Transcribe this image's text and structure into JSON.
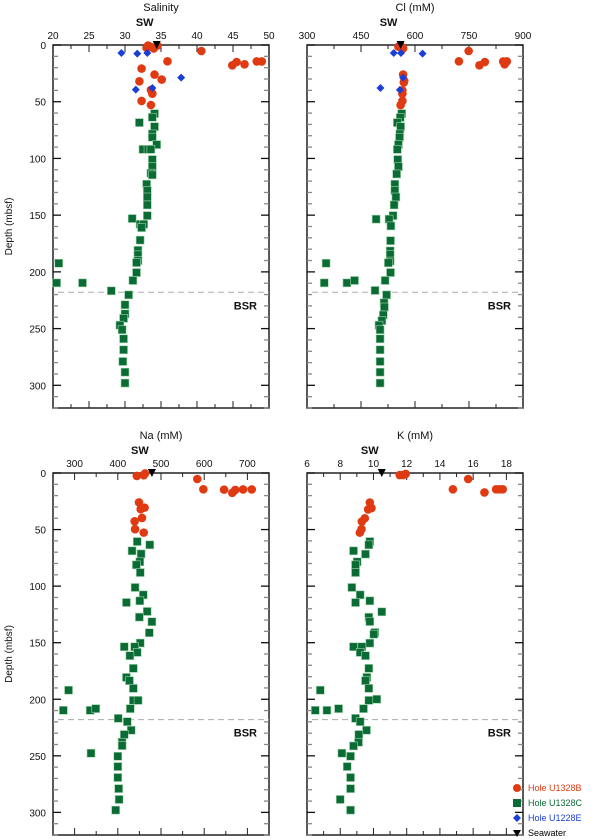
{
  "colors": {
    "U1328B": "#e03a12",
    "U1328C": "#0b6b35",
    "U1228E": "#1a3fd6",
    "Seawater": "#000000"
  },
  "legend": [
    {
      "key": "U1328B",
      "label": "Hole U1328B",
      "marker": "circle"
    },
    {
      "key": "U1328C",
      "label": "Hole U1328C",
      "marker": "square"
    },
    {
      "key": "U1228E",
      "label": "Hole U1228E",
      "marker": "diamond"
    },
    {
      "key": "Seawater",
      "label": "Seawater",
      "marker": "triangle-down"
    }
  ],
  "chart_data": [
    {
      "type": "scatter",
      "title": "Salinity",
      "ylabel": "Depth (mbsf)",
      "sw_label": "SW",
      "bsr_label": "BSR",
      "bsr_depth": 218,
      "xlim": [
        20,
        50
      ],
      "xticks": [
        20,
        25,
        30,
        35,
        40,
        45,
        50
      ],
      "ylim": [
        320,
        0
      ],
      "yticks": [
        0,
        50,
        100,
        150,
        200,
        250,
        300
      ],
      "series": {
        "U1328B": [
          [
            33.5,
            1.5
          ],
          [
            33,
            2.5
          ],
          [
            34,
            3
          ],
          [
            34.5,
            0.5
          ],
          [
            33.2,
            0.5
          ],
          [
            40.6,
            5.3
          ],
          [
            35.9,
            14.4
          ],
          [
            44.9,
            17.9
          ],
          [
            45.5,
            15
          ],
          [
            46.6,
            17
          ],
          [
            48.3,
            14.5
          ],
          [
            49,
            14.5
          ],
          [
            32.3,
            20.8
          ],
          [
            34.1,
            26.1
          ],
          [
            35.1,
            30.5
          ],
          [
            32,
            32
          ],
          [
            33.6,
            39.6
          ],
          [
            33.8,
            42.9
          ],
          [
            32.3,
            49.3
          ],
          [
            33.6,
            52.9
          ]
        ],
        "U1228E": [
          [
            29.5,
            7
          ],
          [
            31.7,
            7.6
          ],
          [
            33.1,
            7
          ],
          [
            37.8,
            28.8
          ],
          [
            31.5,
            39.3
          ],
          [
            33.8,
            37.9
          ]
        ],
        "U1328C": [
          [
            34.1,
            60.5
          ],
          [
            33.8,
            63.7
          ],
          [
            32,
            68.4
          ],
          [
            34.1,
            72
          ],
          [
            33.8,
            78.4
          ],
          [
            33.8,
            81.3
          ],
          [
            34.4,
            87.8
          ],
          [
            32.5,
            92
          ],
          [
            33.2,
            92
          ],
          [
            33.6,
            92
          ],
          [
            33.8,
            101
          ],
          [
            33.8,
            107.3
          ],
          [
            33.6,
            113
          ],
          [
            33.8,
            114.5
          ],
          [
            33,
            122.7
          ],
          [
            33.1,
            128.4
          ],
          [
            33.1,
            134
          ],
          [
            33.1,
            141
          ],
          [
            33.1,
            150.4
          ],
          [
            31,
            153
          ],
          [
            32.1,
            158
          ],
          [
            32.6,
            158
          ],
          [
            32.3,
            161
          ],
          [
            32.1,
            172
          ],
          [
            31.8,
            181
          ],
          [
            31.8,
            185
          ],
          [
            31.8,
            190
          ],
          [
            31.6,
            191.8
          ],
          [
            20.8,
            192.4
          ],
          [
            31.6,
            200.6
          ],
          [
            31.1,
            207.6
          ],
          [
            20.5,
            209.7
          ],
          [
            24.1,
            209.7
          ],
          [
            28.1,
            216.7
          ],
          [
            30.5,
            220.3
          ],
          [
            30,
            229
          ],
          [
            30,
            237
          ],
          [
            29.8,
            241
          ],
          [
            29.3,
            247
          ],
          [
            29.6,
            251
          ],
          [
            29.8,
            259
          ],
          [
            29.8,
            268.7
          ],
          [
            29.7,
            279
          ],
          [
            30,
            288.4
          ],
          [
            30,
            298
          ]
        ],
        "Seawater": [
          [
            34.4,
            0
          ]
        ]
      }
    },
    {
      "type": "scatter",
      "title": "Cl (mM)",
      "ylabel": "",
      "sw_label": "SW",
      "bsr_label": "BSR",
      "bsr_depth": 218,
      "xlim": [
        300,
        900
      ],
      "xticks": [
        300,
        450,
        600,
        750,
        900
      ],
      "ylim": [
        320,
        0
      ],
      "yticks": [],
      "series": {
        "U1328B": [
          [
            554,
            1.5
          ],
          [
            567,
            3
          ],
          [
            560,
            0.5
          ],
          [
            749,
            5.3
          ],
          [
            722,
            14.4
          ],
          [
            794,
            15
          ],
          [
            779,
            17.9
          ],
          [
            845,
            14.5
          ],
          [
            855,
            14.5
          ],
          [
            849,
            17
          ],
          [
            567,
            26
          ],
          [
            570,
            31.5
          ],
          [
            569,
            33
          ],
          [
            565,
            40
          ],
          [
            565,
            43
          ],
          [
            565,
            49.3
          ],
          [
            560,
            53
          ]
        ],
        "U1228E": [
          [
            541,
            7
          ],
          [
            561,
            7
          ],
          [
            621,
            7.6
          ],
          [
            567,
            28.8
          ],
          [
            504,
            37.9
          ],
          [
            558,
            39.6
          ]
        ],
        "U1328C": [
          [
            563,
            60.5
          ],
          [
            559,
            63.9
          ],
          [
            551,
            68.4
          ],
          [
            560,
            72
          ],
          [
            558,
            78.4
          ],
          [
            557,
            81.3
          ],
          [
            554,
            87.8
          ],
          [
            551,
            92
          ],
          [
            552,
            101
          ],
          [
            554,
            107.3
          ],
          [
            549,
            113.7
          ],
          [
            544,
            122.7
          ],
          [
            544,
            128.4
          ],
          [
            547,
            134
          ],
          [
            542,
            141
          ],
          [
            539,
            150.4
          ],
          [
            492,
            153.5
          ],
          [
            528,
            153.5
          ],
          [
            533,
            159.5
          ],
          [
            532,
            172.5
          ],
          [
            531,
            181.5
          ],
          [
            531,
            184.5
          ],
          [
            531,
            190.5
          ],
          [
            526,
            192
          ],
          [
            353,
            192.4
          ],
          [
            532,
            200.6
          ],
          [
            517,
            207.6
          ],
          [
            348,
            209.7
          ],
          [
            411,
            209.7
          ],
          [
            432,
            207.6
          ],
          [
            489,
            216.4
          ],
          [
            521,
            220.3
          ],
          [
            514,
            227.3
          ],
          [
            515,
            231
          ],
          [
            512,
            238
          ],
          [
            508,
            243
          ],
          [
            500,
            247
          ],
          [
            503,
            251
          ],
          [
            503,
            259
          ],
          [
            503,
            268.7
          ],
          [
            503,
            279
          ],
          [
            503,
            288.4
          ],
          [
            503,
            298
          ]
        ],
        "Seawater": [
          [
            560,
            0
          ]
        ]
      }
    },
    {
      "type": "scatter",
      "title": "Na (mM)",
      "ylabel": "Depth (mbsf)",
      "sw_label": "SW",
      "bsr_label": "BSR",
      "bsr_depth": 218,
      "xlim": [
        250,
        750
      ],
      "xticks": [
        300,
        400,
        500,
        600,
        700
      ],
      "ylim": [
        320,
        0
      ],
      "yticks": [
        0,
        50,
        100,
        150,
        200,
        250,
        300
      ],
      "series": {
        "U1328B": [
          [
            444,
            2.6
          ],
          [
            460,
            2
          ],
          [
            463,
            0.4
          ],
          [
            584,
            5.3
          ],
          [
            598,
            14.4
          ],
          [
            646,
            14.7
          ],
          [
            665,
            17.5
          ],
          [
            672,
            15
          ],
          [
            690,
            14.5
          ],
          [
            710,
            14.5
          ],
          [
            449,
            26
          ],
          [
            453,
            32
          ],
          [
            462,
            30.6
          ],
          [
            456,
            39.7
          ],
          [
            439,
            42.7
          ],
          [
            440,
            49.7
          ],
          [
            460,
            52.7
          ]
        ],
        "U1328C": [
          [
            445,
            60.6
          ],
          [
            474,
            63.5
          ],
          [
            433,
            68.8
          ],
          [
            454,
            71.5
          ],
          [
            451,
            78.5
          ],
          [
            443,
            81.2
          ],
          [
            452,
            88
          ],
          [
            440,
            101.2
          ],
          [
            459,
            107.7
          ],
          [
            420,
            114.5
          ],
          [
            451,
            113
          ],
          [
            468,
            122.4
          ],
          [
            450,
            127.4
          ],
          [
            479,
            131.5
          ],
          [
            473,
            141.2
          ],
          [
            452,
            150.3
          ],
          [
            415,
            153.6
          ],
          [
            439,
            153.6
          ],
          [
            445,
            158.6
          ],
          [
            428,
            161.5
          ],
          [
            436,
            172.7
          ],
          [
            420,
            180.7
          ],
          [
            427,
            183.6
          ],
          [
            436,
            190.4
          ],
          [
            286,
            192
          ],
          [
            436,
            201
          ],
          [
            447,
            201
          ],
          [
            274,
            209.8
          ],
          [
            336,
            209.8
          ],
          [
            349,
            208.3
          ],
          [
            429,
            208.3
          ],
          [
            401,
            216.9
          ],
          [
            422,
            219.8
          ],
          [
            431,
            227.4
          ],
          [
            415,
            231.2
          ],
          [
            410,
            238
          ],
          [
            410,
            241
          ],
          [
            338,
            247.7
          ],
          [
            400,
            250.4
          ],
          [
            400,
            259.5
          ],
          [
            400,
            269.2
          ],
          [
            402,
            279
          ],
          [
            403,
            288.6
          ],
          [
            395,
            298
          ]
        ],
        "Seawater": [
          [
            479,
            0
          ]
        ]
      }
    },
    {
      "type": "scatter",
      "title": "K (mM)",
      "ylabel": "",
      "sw_label": "SW",
      "bsr_label": "BSR",
      "bsr_depth": 218,
      "xlim": [
        6,
        19
      ],
      "xticks": [
        6,
        8,
        10,
        12,
        14,
        16,
        18
      ],
      "ylim": [
        320,
        0
      ],
      "yticks": [],
      "series": {
        "U1328B": [
          [
            11.58,
            1.8
          ],
          [
            11.94,
            0.8
          ],
          [
            11.78,
            1.8
          ],
          [
            15.7,
            5.3
          ],
          [
            14.78,
            14.4
          ],
          [
            16.68,
            17.2
          ],
          [
            17.38,
            14.4
          ],
          [
            17.58,
            14.4
          ],
          [
            17.78,
            14.4
          ],
          [
            9.78,
            26.1
          ],
          [
            9.88,
            31
          ],
          [
            9.68,
            32.2
          ],
          [
            9.48,
            40
          ],
          [
            9.3,
            42.9
          ],
          [
            9.28,
            49.7
          ],
          [
            9.18,
            52.7
          ]
        ],
        "U1328C": [
          [
            9.78,
            60.6
          ],
          [
            9.72,
            63.5
          ],
          [
            8.8,
            68.8
          ],
          [
            9.52,
            71.7
          ],
          [
            9.02,
            78.5
          ],
          [
            8.92,
            81.2
          ],
          [
            8.92,
            88
          ],
          [
            8.7,
            101.2
          ],
          [
            9.2,
            107.7
          ],
          [
            8.92,
            114.5
          ],
          [
            9.78,
            113
          ],
          [
            10.5,
            122.7
          ],
          [
            9.72,
            127.5
          ],
          [
            9.78,
            131.3
          ],
          [
            10.08,
            141
          ],
          [
            10.02,
            142.5
          ],
          [
            9.78,
            150.4
          ],
          [
            8.8,
            153.6
          ],
          [
            9.3,
            153.6
          ],
          [
            9.2,
            158.6
          ],
          [
            9.52,
            161.5
          ],
          [
            9.72,
            172.7
          ],
          [
            9.6,
            180.7
          ],
          [
            9.52,
            183.6
          ],
          [
            9.72,
            190.4
          ],
          [
            6.8,
            192
          ],
          [
            9.72,
            201
          ],
          [
            10.2,
            200
          ],
          [
            6.5,
            209.8
          ],
          [
            7.2,
            209.8
          ],
          [
            7.9,
            208.3
          ],
          [
            9.4,
            208.3
          ],
          [
            8.92,
            216.9
          ],
          [
            9.2,
            219.8
          ],
          [
            9.58,
            227.4
          ],
          [
            9.12,
            231.2
          ],
          [
            9.1,
            238
          ],
          [
            8.8,
            241.3
          ],
          [
            8.1,
            247.7
          ],
          [
            8.62,
            250.4
          ],
          [
            8.42,
            259.5
          ],
          [
            8.62,
            269.2
          ],
          [
            8.62,
            279
          ],
          [
            8.0,
            288.6
          ],
          [
            8.62,
            298
          ]
        ],
        "Seawater": [
          [
            10.5,
            0
          ]
        ]
      }
    }
  ]
}
